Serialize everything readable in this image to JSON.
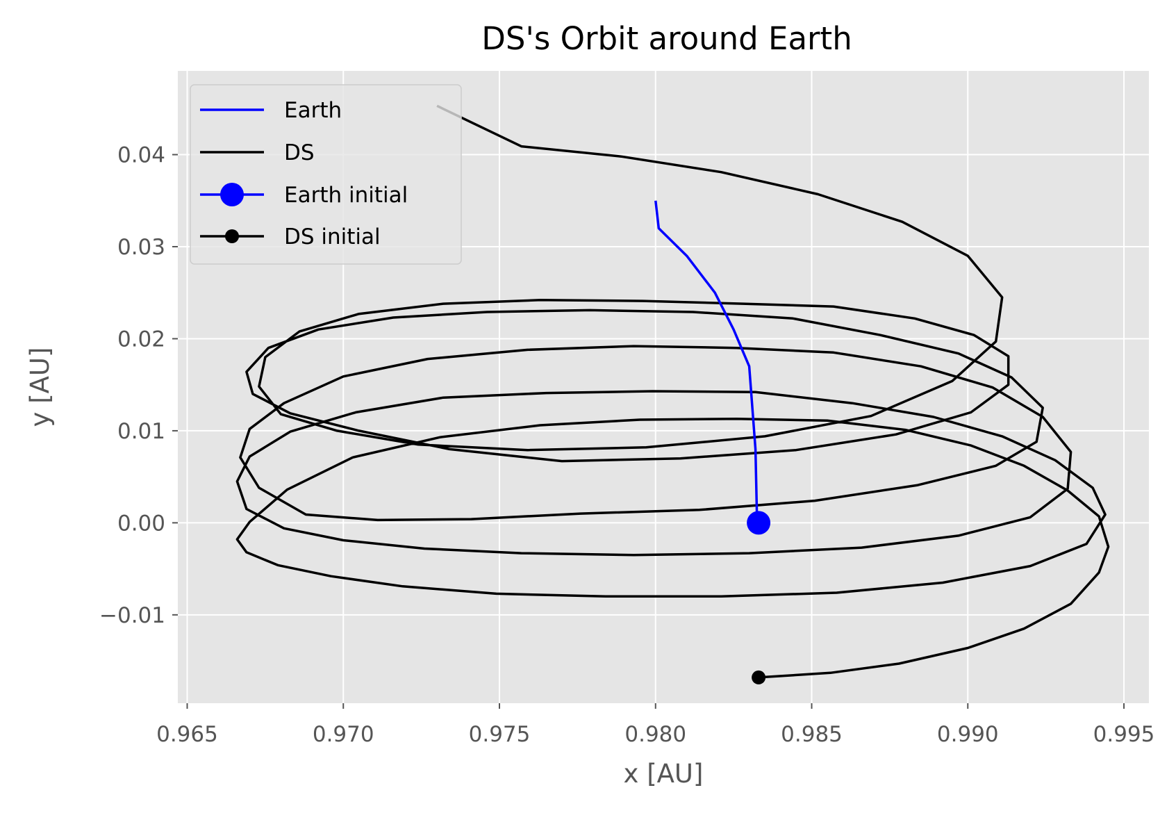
{
  "chart_data": {
    "type": "line",
    "title": "DS's Orbit around Earth",
    "xlabel": "x [AU]",
    "ylabel": "y [AU]",
    "xlim": [
      0.9647,
      0.9958
    ],
    "ylim": [
      -0.0196,
      0.0491
    ],
    "xticks": [
      0.965,
      0.97,
      0.975,
      0.98,
      0.985,
      0.99,
      0.995
    ],
    "yticks": [
      -0.01,
      0.0,
      0.01,
      0.02,
      0.03,
      0.04
    ],
    "xtick_labels": [
      "0.965",
      "0.970",
      "0.975",
      "0.980",
      "0.985",
      "0.990",
      "0.995"
    ],
    "ytick_labels": [
      "−0.01",
      "0.00",
      "0.01",
      "0.02",
      "0.03",
      "0.04"
    ],
    "grid": true,
    "legend_position": "top-left",
    "series": [
      {
        "name": "Earth",
        "color": "#0000ff",
        "x": [
          0.98325,
          0.9832,
          0.983,
          0.9825,
          0.9819,
          0.981,
          0.9801,
          0.98
        ],
        "y": [
          0.0,
          0.008,
          0.017,
          0.021,
          0.025,
          0.029,
          0.032,
          0.035
        ]
      },
      {
        "name": "DS",
        "color": "#000000",
        "x": [
          0.9833,
          0.9856,
          0.9878,
          0.99,
          0.9918,
          0.9933,
          0.9942,
          0.9945,
          0.9942,
          0.9932,
          0.9918,
          0.9901,
          0.988,
          0.9855,
          0.9826,
          0.9795,
          0.9763,
          0.9731,
          0.9703,
          0.9682,
          0.967,
          0.9666,
          0.9669,
          0.9679,
          0.9696,
          0.9719,
          0.9749,
          0.9784,
          0.9821,
          0.9858,
          0.9892,
          0.992,
          0.9938,
          0.9944,
          0.994,
          0.9928,
          0.9911,
          0.9889,
          0.9863,
          0.9832,
          0.9799,
          0.9765,
          0.9732,
          0.9704,
          0.9683,
          0.967,
          0.9666,
          0.9669,
          0.9681,
          0.97,
          0.9726,
          0.9757,
          0.9793,
          0.983,
          0.9866,
          0.9897,
          0.992,
          0.9932,
          0.9933,
          0.9924,
          0.9908,
          0.9885,
          0.9857,
          0.9826,
          0.9793,
          0.9759,
          0.9727,
          0.97,
          0.9681,
          0.967,
          0.9667,
          0.9673,
          0.9688,
          0.9711,
          0.9741,
          0.9776,
          0.9814,
          0.9851,
          0.9884,
          0.9909,
          0.9922,
          0.9924,
          0.9914,
          0.9897,
          0.9872,
          0.9844,
          0.9812,
          0.9779,
          0.9746,
          0.9716,
          0.9692,
          0.9676,
          0.9669,
          0.9671,
          0.9683,
          0.9705,
          0.9734,
          0.977,
          0.9808,
          0.9845,
          0.9877,
          0.9901,
          0.9913,
          0.9913,
          0.9902,
          0.9883,
          0.9857,
          0.9828,
          0.9796,
          0.9763,
          0.9732,
          0.9705,
          0.9686,
          0.9675,
          0.9673,
          0.968,
          0.9698,
          0.9724,
          0.9759,
          0.9797,
          0.9835,
          0.9869,
          0.9895,
          0.9909,
          0.9911,
          0.99,
          0.9879,
          0.9852,
          0.9821,
          0.9789,
          0.9757,
          0.973
        ],
        "y": [
          -0.0168,
          -0.0163,
          -0.0153,
          -0.0136,
          -0.0115,
          -0.0088,
          -0.0054,
          -0.0026,
          0.0007,
          0.0035,
          0.0062,
          0.0084,
          0.0101,
          0.0111,
          0.0113,
          0.0112,
          0.0106,
          0.0093,
          0.0071,
          0.0036,
          0.0001,
          -0.0018,
          -0.0032,
          -0.0046,
          -0.0058,
          -0.0069,
          -0.0077,
          -0.008,
          -0.008,
          -0.0076,
          -0.0065,
          -0.0047,
          -0.0023,
          0.0009,
          0.0038,
          0.0068,
          0.0094,
          0.0115,
          0.013,
          0.0142,
          0.0143,
          0.0141,
          0.0136,
          0.012,
          0.0099,
          0.0072,
          0.0045,
          0.0015,
          -0.0006,
          -0.0019,
          -0.0028,
          -0.0033,
          -0.0035,
          -0.0033,
          -0.0027,
          -0.0014,
          0.0006,
          0.0037,
          0.0077,
          0.0115,
          0.0147,
          0.017,
          0.0185,
          0.019,
          0.0192,
          0.0188,
          0.0178,
          0.0159,
          0.013,
          0.0102,
          0.0071,
          0.0038,
          0.0009,
          0.0003,
          0.0004,
          0.001,
          0.0014,
          0.0024,
          0.0041,
          0.0062,
          0.0088,
          0.0125,
          0.0158,
          0.0184,
          0.0204,
          0.0222,
          0.0229,
          0.0231,
          0.0229,
          0.0223,
          0.021,
          0.019,
          0.0164,
          0.014,
          0.0119,
          0.01,
          0.008,
          0.0067,
          0.007,
          0.0079,
          0.0096,
          0.012,
          0.015,
          0.0181,
          0.0204,
          0.0222,
          0.0235,
          0.0238,
          0.0241,
          0.0242,
          0.0238,
          0.0227,
          0.0208,
          0.018,
          0.0148,
          0.0118,
          0.01,
          0.0085,
          0.0079,
          0.0082,
          0.0094,
          0.0116,
          0.0154,
          0.0197,
          0.0245,
          0.029,
          0.0327,
          0.0357,
          0.0381,
          0.0398,
          0.0409,
          0.0453
        ]
      }
    ],
    "markers": [
      {
        "name": "Earth initial",
        "color": "#0000ff",
        "x": 0.9833,
        "y": 0.0
      },
      {
        "name": "DS initial",
        "color": "#000000",
        "x": 0.9833,
        "y": -0.0168
      }
    ]
  }
}
